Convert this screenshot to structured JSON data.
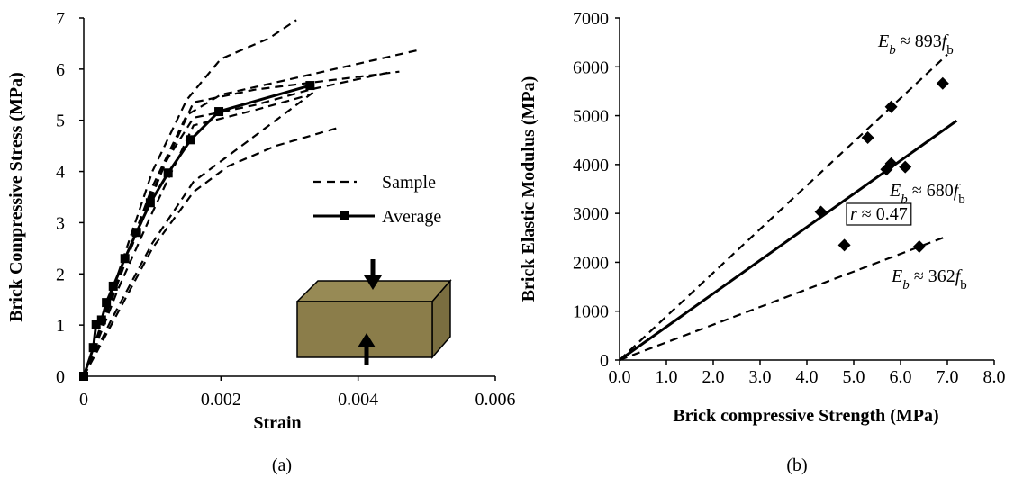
{
  "chart_data": [
    {
      "type": "line",
      "caption": "(a)",
      "xlabel": "Strain",
      "ylabel": "Brick Compressive Stress (MPa)",
      "xlim": [
        0,
        0.006
      ],
      "xticks": [
        0,
        0.002,
        0.004,
        0.006
      ],
      "ylim": [
        0,
        7
      ],
      "yticks": [
        0,
        1,
        2,
        3,
        4,
        5,
        6,
        7
      ],
      "series": [
        {
          "name": "Sample",
          "color": "#000000",
          "dashed": true,
          "x": [
            0,
            0.0005,
            0.001,
            0.0015,
            0.002,
            0.0027,
            0.0031
          ],
          "values": [
            0,
            2.0,
            4.0,
            5.4,
            6.2,
            6.6,
            6.96
          ]
        },
        {
          "name": "Sample",
          "color": "#000000",
          "dashed": true,
          "x": [
            0,
            0.0005,
            0.001,
            0.0015,
            0.002,
            0.003,
            0.0049
          ],
          "values": [
            0,
            1.9,
            3.7,
            5.1,
            5.5,
            5.8,
            6.38
          ]
        },
        {
          "name": "Sample",
          "color": "#000000",
          "dashed": true,
          "x": [
            0,
            0.0005,
            0.001,
            0.0016,
            0.0025,
            0.0046
          ],
          "values": [
            0,
            1.9,
            3.6,
            5.35,
            5.6,
            5.95
          ]
        },
        {
          "name": "Sample",
          "color": "#000000",
          "dashed": true,
          "x": [
            0,
            0.0006,
            0.0012,
            0.0016,
            0.0025,
            0.0033,
            0.0045
          ],
          "values": [
            0,
            2.2,
            4.2,
            5.05,
            5.3,
            5.6,
            5.95
          ]
        },
        {
          "name": "Sample",
          "color": "#000000",
          "dashed": true,
          "x": [
            0,
            0.0005,
            0.001,
            0.0016,
            0.0025,
            0.0033
          ],
          "values": [
            0,
            1.7,
            3.2,
            4.9,
            5.2,
            5.5
          ]
        },
        {
          "name": "Sample",
          "color": "#000000",
          "dashed": true,
          "x": [
            0,
            0.0004,
            0.001,
            0.0016,
            0.0021,
            0.0028,
            0.0037
          ],
          "values": [
            0,
            1.0,
            2.5,
            3.6,
            4.1,
            4.5,
            4.85
          ]
        },
        {
          "name": "Sample",
          "color": "#000000",
          "dashed": true,
          "x": [
            0,
            0.0004,
            0.001,
            0.0016,
            0.0022,
            0.0034
          ],
          "values": [
            0,
            1.1,
            2.6,
            3.8,
            4.4,
            5.6
          ]
        },
        {
          "name": "Average",
          "color": "#000000",
          "dashed": false,
          "markers": true,
          "x": [
            0,
            0.00014,
            0.00018,
            0.00026,
            0.00033,
            0.00043,
            0.0006,
            0.00077,
            0.00097,
            0.00123,
            0.00156,
            0.00197,
            0.0033
          ],
          "values": [
            0,
            0.56,
            1.02,
            1.1,
            1.44,
            1.76,
            2.3,
            2.81,
            3.39,
            3.97,
            4.62,
            5.17,
            5.68
          ]
        }
      ]
    },
    {
      "type": "scatter",
      "caption": "(b)",
      "xlabel": "Brick compressive Strength (MPa)",
      "ylabel": "Brick Elastic Modulus (MPa)",
      "xlim": [
        0,
        8
      ],
      "xticks": [
        {
          "value": 0,
          "label": "0.0"
        },
        {
          "value": 1,
          "label": "1.0"
        },
        {
          "value": 2,
          "label": "2.0"
        },
        {
          "value": 3,
          "label": "3.0"
        },
        {
          "value": 4,
          "label": "4.0"
        },
        {
          "value": 5,
          "label": "5.0"
        },
        {
          "value": 6,
          "label": "6.0"
        },
        {
          "value": 7,
          "label": "7.0"
        },
        {
          "value": 8,
          "label": "8.0"
        }
      ],
      "ylim": [
        0,
        7000
      ],
      "yticks": [
        0,
        1000,
        2000,
        3000,
        4000,
        5000,
        6000,
        7000
      ],
      "points": {
        "color": "#000000",
        "x": [
          4.3,
          4.8,
          5.3,
          5.7,
          5.8,
          5.8,
          6.1,
          6.4,
          6.9
        ],
        "values": [
          3030,
          2350,
          4550,
          3900,
          5180,
          4020,
          3950,
          2320,
          5660
        ]
      },
      "lines": [
        {
          "color": "#000000",
          "dashed": true,
          "x": [
            0,
            7
          ],
          "values": [
            0,
            6251
          ]
        },
        {
          "color": "#000000",
          "dashed": false,
          "x": [
            0,
            7.2
          ],
          "values": [
            0,
            4896
          ]
        },
        {
          "color": "#000000",
          "dashed": true,
          "x": [
            0,
            7
          ],
          "values": [
            0,
            2534
          ]
        }
      ],
      "annotations": [
        {
          "parts": [
            "E",
            "b",
            " ≈ 893",
            "f",
            "b"
          ]
        },
        {
          "parts": [
            "E",
            "b",
            " ≈ 680",
            "f",
            "b"
          ]
        },
        {
          "parts": [
            "r",
            " ≈ 0.47"
          ],
          "boxed": true
        },
        {
          "parts": [
            "E",
            "b",
            " ≈ 362",
            "f",
            "b"
          ]
        }
      ]
    }
  ]
}
